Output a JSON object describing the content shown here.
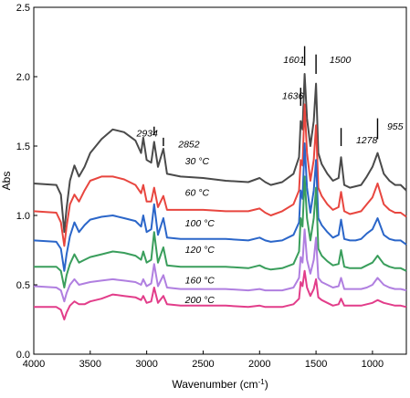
{
  "chart_data": {
    "type": "line",
    "xlabel": "Wavenumber (cm",
    "xlabel_sup": "-1",
    "xlabel_close": ")",
    "ylabel": "Abs",
    "xlim": [
      4000,
      700
    ],
    "ylim": [
      0.0,
      2.5
    ],
    "x_reversed": true,
    "x_ticks": [
      4000,
      3500,
      3000,
      2500,
      2000,
      1500,
      1000
    ],
    "x_tick_labels": [
      "4000",
      "3500",
      "3000",
      "2500",
      "2000",
      "1500",
      "1000"
    ],
    "y_ticks": [
      0.0,
      0.5,
      1.0,
      1.5,
      2.0,
      2.5
    ],
    "y_tick_labels": [
      "0.0",
      "0.5",
      "1.0",
      "1.5",
      "2.0",
      "2.5"
    ],
    "grid": false,
    "legend": "none",
    "series": [
      {
        "name": "30 °C",
        "label": "30 °C",
        "label_pos": [
          2660,
          1.37
        ],
        "color": "#4a4a4a",
        "x": [
          4000,
          3800,
          3760,
          3730,
          3710,
          3680,
          3640,
          3600,
          3550,
          3500,
          3400,
          3300,
          3200,
          3100,
          3050,
          3030,
          3000,
          2960,
          2934,
          2900,
          2852,
          2820,
          2700,
          2500,
          2300,
          2100,
          2000,
          1950,
          1900,
          1800,
          1700,
          1650,
          1636,
          1620,
          1601,
          1580,
          1550,
          1520,
          1500,
          1480,
          1450,
          1400,
          1350,
          1300,
          1278,
          1250,
          1200,
          1150,
          1100,
          1050,
          1000,
          955,
          900,
          850,
          800,
          750,
          700
        ],
        "y": [
          1.23,
          1.22,
          1.15,
          0.88,
          1.05,
          1.25,
          1.36,
          1.28,
          1.35,
          1.45,
          1.55,
          1.62,
          1.6,
          1.54,
          1.45,
          1.56,
          1.4,
          1.38,
          1.53,
          1.35,
          1.48,
          1.3,
          1.28,
          1.27,
          1.25,
          1.24,
          1.27,
          1.24,
          1.22,
          1.24,
          1.3,
          1.42,
          1.68,
          1.62,
          2.02,
          1.7,
          1.5,
          1.68,
          1.95,
          1.45,
          1.37,
          1.3,
          1.25,
          1.27,
          1.42,
          1.22,
          1.2,
          1.21,
          1.22,
          1.28,
          1.35,
          1.45,
          1.3,
          1.25,
          1.22,
          1.22,
          1.18
        ]
      },
      {
        "name": "60 °C",
        "label": "60 °C",
        "label_pos": [
          2660,
          1.14
        ],
        "color": "#e8463f",
        "x": [
          4000,
          3800,
          3760,
          3730,
          3710,
          3680,
          3640,
          3600,
          3550,
          3500,
          3400,
          3300,
          3200,
          3100,
          3050,
          3030,
          3000,
          2960,
          2934,
          2900,
          2852,
          2820,
          2700,
          2500,
          2300,
          2100,
          2000,
          1950,
          1900,
          1800,
          1700,
          1650,
          1636,
          1620,
          1601,
          1580,
          1550,
          1520,
          1500,
          1480,
          1450,
          1400,
          1350,
          1300,
          1278,
          1250,
          1200,
          1150,
          1100,
          1050,
          1000,
          955,
          900,
          850,
          800,
          750,
          700
        ],
        "y": [
          1.03,
          1.02,
          0.95,
          0.78,
          0.92,
          1.08,
          1.15,
          1.1,
          1.18,
          1.25,
          1.28,
          1.28,
          1.26,
          1.22,
          1.16,
          1.22,
          1.1,
          1.1,
          1.2,
          1.06,
          1.14,
          1.04,
          1.04,
          1.04,
          1.03,
          1.03,
          1.05,
          1.02,
          1.0,
          1.03,
          1.08,
          1.18,
          1.4,
          1.36,
          1.8,
          1.45,
          1.25,
          1.4,
          1.65,
          1.2,
          1.14,
          1.08,
          1.04,
          1.06,
          1.17,
          1.03,
          1.01,
          1.02,
          1.03,
          1.08,
          1.13,
          1.23,
          1.08,
          1.04,
          1.02,
          1.02,
          0.99
        ]
      },
      {
        "name": "100 °C",
        "label": "100 °C",
        "label_pos": [
          2660,
          0.92
        ],
        "color": "#2b66c9",
        "x": [
          4000,
          3800,
          3760,
          3730,
          3710,
          3680,
          3640,
          3600,
          3550,
          3500,
          3400,
          3300,
          3200,
          3100,
          3050,
          3030,
          3000,
          2960,
          2934,
          2900,
          2852,
          2820,
          2700,
          2500,
          2300,
          2100,
          2000,
          1950,
          1900,
          1800,
          1700,
          1650,
          1636,
          1620,
          1601,
          1580,
          1550,
          1520,
          1500,
          1480,
          1450,
          1400,
          1350,
          1300,
          1278,
          1250,
          1200,
          1150,
          1100,
          1050,
          1000,
          955,
          900,
          850,
          800,
          750,
          700
        ],
        "y": [
          0.82,
          0.81,
          0.76,
          0.6,
          0.72,
          0.85,
          0.95,
          0.88,
          0.93,
          0.97,
          0.99,
          1.0,
          0.98,
          0.96,
          0.92,
          1.0,
          0.88,
          0.9,
          1.08,
          0.86,
          0.98,
          0.84,
          0.83,
          0.83,
          0.83,
          0.82,
          0.84,
          0.82,
          0.81,
          0.82,
          0.86,
          0.95,
          1.18,
          1.12,
          1.52,
          1.2,
          1.02,
          1.18,
          1.4,
          0.98,
          0.93,
          0.88,
          0.84,
          0.86,
          0.97,
          0.83,
          0.82,
          0.82,
          0.83,
          0.87,
          0.9,
          0.98,
          0.86,
          0.83,
          0.82,
          0.82,
          0.79
        ]
      },
      {
        "name": "120 °C",
        "label": "120 °C",
        "label_pos": [
          2660,
          0.73
        ],
        "color": "#3a9e5c",
        "x": [
          4000,
          3800,
          3760,
          3730,
          3710,
          3680,
          3640,
          3600,
          3550,
          3500,
          3400,
          3300,
          3200,
          3100,
          3050,
          3030,
          3000,
          2960,
          2934,
          2900,
          2852,
          2820,
          2700,
          2500,
          2300,
          2100,
          2000,
          1950,
          1900,
          1800,
          1700,
          1650,
          1636,
          1620,
          1601,
          1580,
          1550,
          1520,
          1500,
          1480,
          1450,
          1400,
          1350,
          1300,
          1278,
          1250,
          1200,
          1150,
          1100,
          1050,
          1000,
          955,
          900,
          850,
          800,
          750,
          700
        ],
        "y": [
          0.63,
          0.63,
          0.6,
          0.48,
          0.57,
          0.65,
          0.72,
          0.66,
          0.68,
          0.7,
          0.72,
          0.74,
          0.73,
          0.71,
          0.68,
          0.74,
          0.66,
          0.68,
          0.88,
          0.66,
          0.77,
          0.64,
          0.63,
          0.63,
          0.63,
          0.62,
          0.64,
          0.62,
          0.61,
          0.62,
          0.65,
          0.74,
          0.98,
          0.92,
          1.28,
          0.98,
          0.82,
          0.98,
          1.2,
          0.76,
          0.71,
          0.67,
          0.64,
          0.65,
          0.75,
          0.63,
          0.62,
          0.62,
          0.62,
          0.64,
          0.66,
          0.71,
          0.65,
          0.63,
          0.62,
          0.62,
          0.6
        ]
      },
      {
        "name": "160 °C",
        "label": "160 °C",
        "label_pos": [
          2660,
          0.51
        ],
        "color": "#b07fe0",
        "x": [
          4000,
          3800,
          3760,
          3730,
          3710,
          3680,
          3640,
          3600,
          3550,
          3500,
          3400,
          3300,
          3200,
          3100,
          3050,
          3030,
          3000,
          2960,
          2934,
          2900,
          2852,
          2820,
          2700,
          2500,
          2300,
          2100,
          2000,
          1950,
          1900,
          1800,
          1700,
          1650,
          1636,
          1620,
          1601,
          1580,
          1550,
          1520,
          1500,
          1480,
          1450,
          1400,
          1350,
          1300,
          1278,
          1250,
          1200,
          1150,
          1100,
          1050,
          1000,
          955,
          900,
          850,
          800,
          750,
          700
        ],
        "y": [
          0.49,
          0.48,
          0.46,
          0.38,
          0.44,
          0.5,
          0.54,
          0.5,
          0.51,
          0.52,
          0.53,
          0.54,
          0.53,
          0.52,
          0.5,
          0.54,
          0.49,
          0.51,
          0.65,
          0.49,
          0.57,
          0.48,
          0.47,
          0.47,
          0.47,
          0.46,
          0.47,
          0.46,
          0.46,
          0.46,
          0.48,
          0.55,
          0.7,
          0.66,
          0.9,
          0.68,
          0.58,
          0.68,
          0.84,
          0.55,
          0.52,
          0.5,
          0.48,
          0.49,
          0.55,
          0.47,
          0.47,
          0.47,
          0.47,
          0.48,
          0.5,
          0.55,
          0.5,
          0.48,
          0.47,
          0.47,
          0.46
        ]
      },
      {
        "name": "200 °C",
        "label": "200 °C",
        "label_pos": [
          2660,
          0.37
        ],
        "color": "#e23d8a",
        "x": [
          4000,
          3800,
          3760,
          3730,
          3710,
          3680,
          3640,
          3600,
          3550,
          3500,
          3400,
          3300,
          3200,
          3100,
          3050,
          3030,
          3000,
          2960,
          2934,
          2900,
          2852,
          2820,
          2700,
          2500,
          2300,
          2100,
          2000,
          1950,
          1900,
          1800,
          1700,
          1650,
          1636,
          1620,
          1601,
          1580,
          1550,
          1520,
          1500,
          1480,
          1450,
          1400,
          1350,
          1300,
          1278,
          1250,
          1200,
          1150,
          1100,
          1050,
          1000,
          955,
          900,
          850,
          800,
          750,
          700
        ],
        "y": [
          0.34,
          0.34,
          0.32,
          0.25,
          0.3,
          0.35,
          0.38,
          0.36,
          0.36,
          0.38,
          0.4,
          0.43,
          0.42,
          0.41,
          0.39,
          0.42,
          0.37,
          0.38,
          0.48,
          0.37,
          0.42,
          0.36,
          0.35,
          0.35,
          0.35,
          0.34,
          0.35,
          0.34,
          0.34,
          0.34,
          0.36,
          0.4,
          0.52,
          0.49,
          0.6,
          0.48,
          0.42,
          0.47,
          0.54,
          0.41,
          0.39,
          0.37,
          0.35,
          0.36,
          0.4,
          0.35,
          0.35,
          0.35,
          0.35,
          0.36,
          0.37,
          0.39,
          0.37,
          0.36,
          0.35,
          0.35,
          0.34
        ]
      }
    ],
    "annotations": [
      {
        "text": "2934",
        "label_x": 3090,
        "label_y": 1.57,
        "bar_x": 2934,
        "bar_y": [
          1.58,
          1.64
        ]
      },
      {
        "text": "2852",
        "label_x": 2720,
        "label_y": 1.49,
        "bar_x": 2852,
        "bar_y": [
          1.5,
          1.56
        ]
      },
      {
        "text": "1601",
        "label_x": 1790,
        "label_y": 2.1,
        "bar_x": 1601,
        "bar_y": [
          2.08,
          2.22
        ]
      },
      {
        "text": "1500",
        "label_x": 1380,
        "label_y": 2.1,
        "bar_x": 1500,
        "bar_y": [
          2.02,
          2.16
        ]
      },
      {
        "text": "1636",
        "label_x": 1800,
        "label_y": 1.84,
        "bar_x": 1636,
        "bar_y": [
          1.79,
          1.92
        ]
      },
      {
        "text": "1278",
        "label_x": 1145,
        "label_y": 1.52,
        "bar_x": 1278,
        "bar_y": [
          1.5,
          1.63
        ]
      },
      {
        "text": "955",
        "label_x": 870,
        "label_y": 1.62,
        "bar_x": 955,
        "bar_y": [
          1.55,
          1.7
        ]
      }
    ]
  }
}
